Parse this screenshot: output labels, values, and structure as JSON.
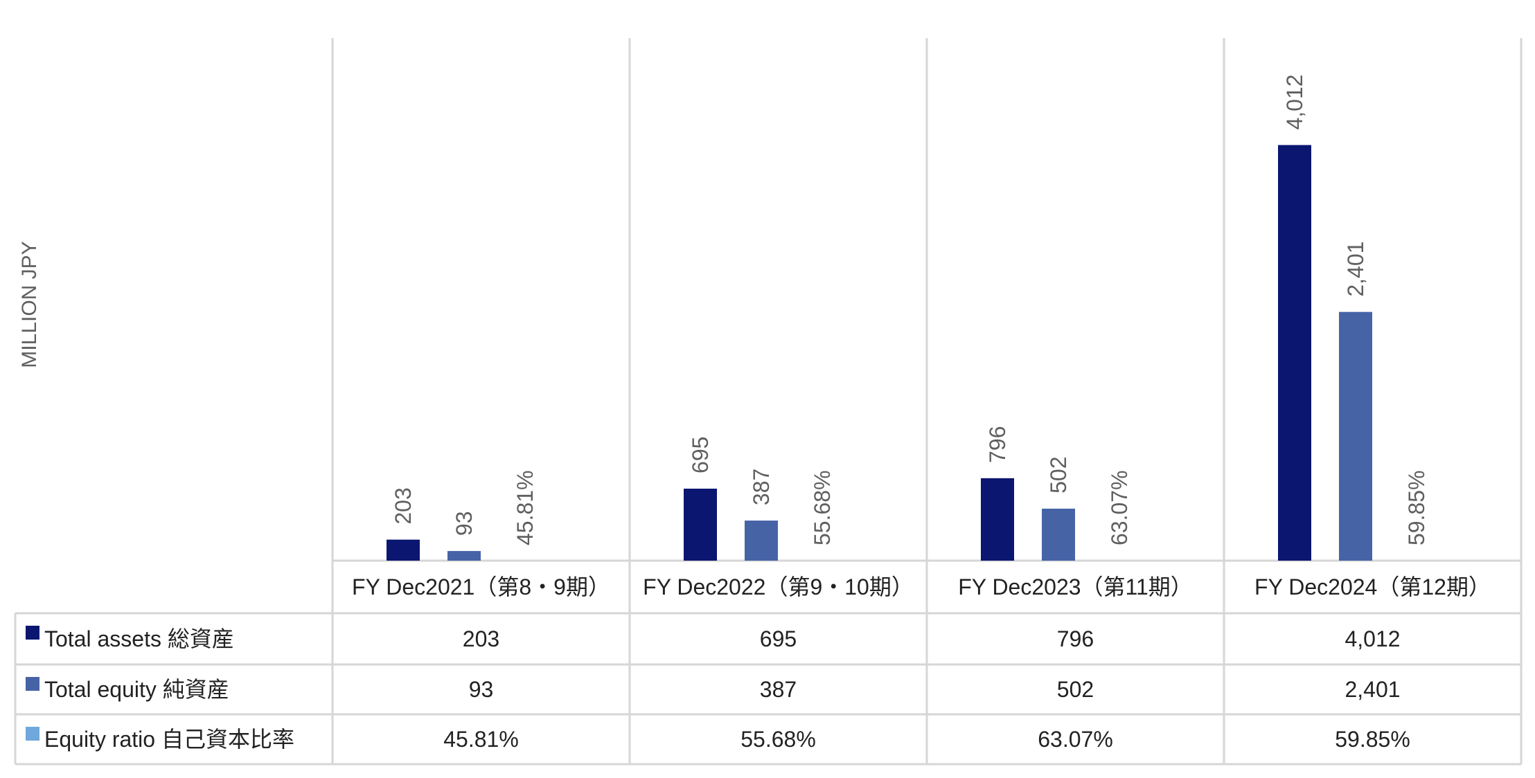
{
  "chart_data": {
    "type": "bar",
    "ylabel": "MILLION JPY",
    "categories": [
      "FY Dec2021（第8・9期）",
      "FY Dec2022（第9・10期）",
      "FY Dec2023（第11期）",
      "FY Dec2024（第12期）"
    ],
    "series": [
      {
        "name": "Total assets 総資産",
        "values": [
          203,
          695,
          796,
          4012
        ],
        "labels": [
          "203",
          "695",
          "796",
          "4,012"
        ],
        "color": "#0b1670"
      },
      {
        "name": "Total equity 純資産",
        "values": [
          93,
          387,
          502,
          2401
        ],
        "labels": [
          "93",
          "387",
          "502",
          "2,401"
        ],
        "color": "#4663a6"
      },
      {
        "name": "Equity ratio 自己資本比率",
        "values": [
          45.81,
          55.68,
          63.07,
          59.85
        ],
        "labels": [
          "45.81%",
          "55.68%",
          "63.07%",
          "59.85%"
        ],
        "color": "#6fa8dc"
      }
    ],
    "ylim": [
      0,
      4500
    ],
    "grid": false,
    "legend": "data table"
  }
}
